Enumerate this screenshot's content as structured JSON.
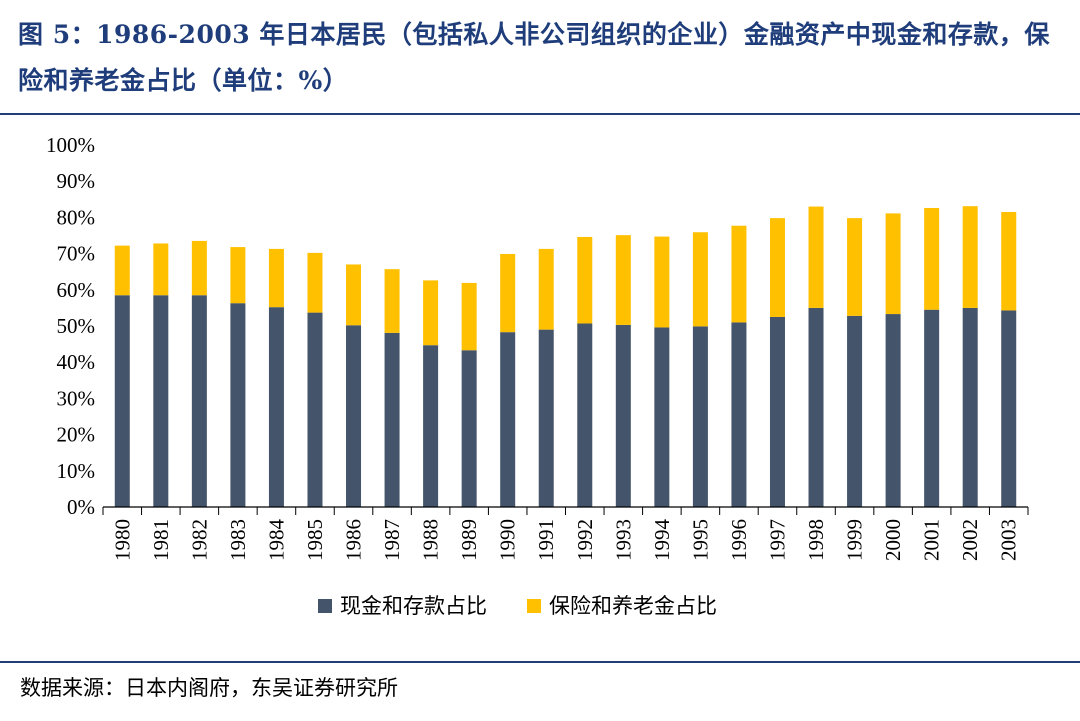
{
  "header": {
    "title": "图 5：1986-2003 年日本居民（包括私人非公司组织的企业）金融资产中现金和存款，保险和养老金占比（单位：%）"
  },
  "source": "数据来源：日本内阁府，东吴证券研究所",
  "colors": {
    "cash": "#44546a",
    "insurance": "#ffc000",
    "rule": "#1f3d7a"
  },
  "chart_data": {
    "type": "bar",
    "stacked": true,
    "title": "",
    "xlabel": "",
    "ylabel": "",
    "ylim": [
      0,
      100
    ],
    "yticks": [
      "0%",
      "10%",
      "20%",
      "30%",
      "40%",
      "50%",
      "60%",
      "70%",
      "80%",
      "90%",
      "100%"
    ],
    "grid": false,
    "legend_position": "bottom",
    "categories": [
      "1980",
      "1981",
      "1982",
      "1983",
      "1984",
      "1985",
      "1986",
      "1987",
      "1988",
      "1989",
      "1990",
      "1991",
      "1992",
      "1993",
      "1994",
      "1995",
      "1996",
      "1997",
      "1998",
      "1999",
      "2000",
      "2001",
      "2002",
      "2003"
    ],
    "series": [
      {
        "name": "现金和存款占比",
        "color": "#44546a",
        "values": [
          58.5,
          58.5,
          58.5,
          56.3,
          55.2,
          53.7,
          50.2,
          48.1,
          44.7,
          43.3,
          48.3,
          49.0,
          50.7,
          50.3,
          49.6,
          49.9,
          51.0,
          52.5,
          55.0,
          52.8,
          53.3,
          54.5,
          55.0,
          54.3
        ]
      },
      {
        "name": "保险和养老金占比",
        "color": "#ffc000",
        "values": [
          13.7,
          14.3,
          15.0,
          15.5,
          16.1,
          16.5,
          16.8,
          17.6,
          17.9,
          18.6,
          21.6,
          22.3,
          23.9,
          24.8,
          25.1,
          26.0,
          26.7,
          27.3,
          28.0,
          27.0,
          27.8,
          28.1,
          28.1,
          27.2
        ]
      }
    ]
  }
}
